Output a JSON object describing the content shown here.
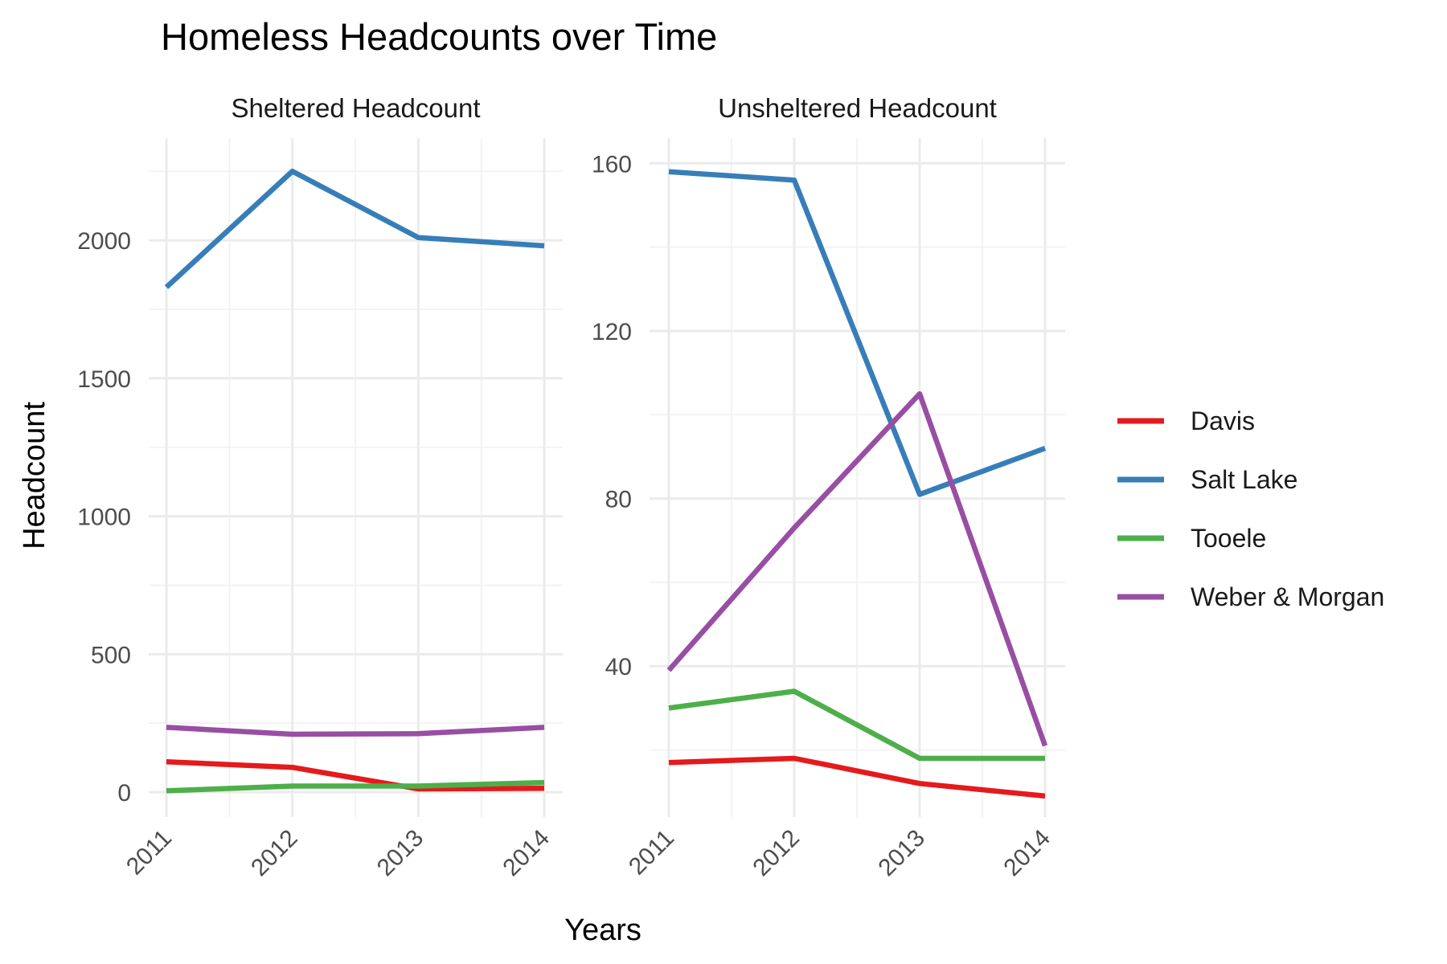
{
  "chart_data": {
    "type": "line",
    "title": "Homeless Headcounts over Time",
    "xlabel": "Years",
    "ylabel": "Headcount",
    "grid": true,
    "legend_position": "right",
    "legend": [
      {
        "name": "Davis",
        "color": "#e41a1c"
      },
      {
        "name": "Salt Lake",
        "color": "#377eb8"
      },
      {
        "name": "Tooele",
        "color": "#4daf4a"
      },
      {
        "name": "Weber & Morgan",
        "color": "#984ea3"
      }
    ],
    "panels": [
      {
        "strip": "Sheltered Headcount",
        "x": [
          2011,
          2012,
          2013,
          2014
        ],
        "x_tick_labels": [
          "2011",
          "2012",
          "2013",
          "2014"
        ],
        "ylim": [
          -90,
          2370
        ],
        "y_ticks": [
          0,
          500,
          1000,
          1500,
          2000
        ],
        "y_tick_labels": [
          "0",
          "500",
          "1000",
          "1500",
          "2000"
        ],
        "series": [
          {
            "name": "Davis",
            "values": [
              110,
              90,
              12,
              14
            ]
          },
          {
            "name": "Salt Lake",
            "values": [
              1830,
              2250,
              2010,
              1980
            ]
          },
          {
            "name": "Tooele",
            "values": [
              5,
              22,
              22,
              35
            ]
          },
          {
            "name": "Weber & Morgan",
            "values": [
              235,
              210,
              212,
              235
            ]
          }
        ]
      },
      {
        "strip": "Unsheltered Headcount",
        "x": [
          2011,
          2012,
          2013,
          2014
        ],
        "x_tick_labels": [
          "2011",
          "2012",
          "2013",
          "2014"
        ],
        "ylim": [
          4,
          166
        ],
        "y_ticks": [
          40,
          80,
          120,
          160
        ],
        "y_tick_labels": [
          "40",
          "80",
          "120",
          "160"
        ],
        "series": [
          {
            "name": "Davis",
            "values": [
              17,
              18,
              12,
              9
            ]
          },
          {
            "name": "Salt Lake",
            "values": [
              158,
              156,
              81,
              92
            ]
          },
          {
            "name": "Tooele",
            "values": [
              30,
              34,
              18,
              18
            ]
          },
          {
            "name": "Weber & Morgan",
            "values": [
              39,
              73,
              105,
              21
            ]
          }
        ]
      }
    ]
  }
}
